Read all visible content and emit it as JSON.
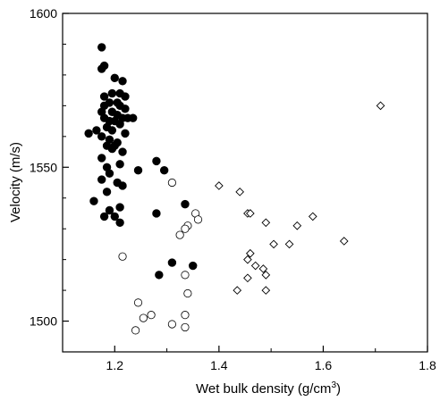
{
  "chart_data": {
    "type": "scatter",
    "xlabel": "Wet bulk density (g/cm",
    "xlabel_sup": "3",
    "xlabel_end": ")",
    "ylabel": "Velocity (m/s)",
    "xlim": [
      1.1,
      1.8
    ],
    "ylim": [
      1490,
      1600
    ],
    "x_ticks": [
      1.2,
      1.4,
      1.6,
      1.8
    ],
    "x_tick_labels": [
      "1.2",
      "1.4",
      "1.6",
      "1.8"
    ],
    "y_ticks": [
      1500,
      1550,
      1600
    ],
    "y_tick_labels": [
      "1500",
      "1550",
      "1600"
    ],
    "legend": "none",
    "grid": false,
    "series": [
      {
        "marker": "filled-circle",
        "color": "#000000",
        "points": [
          [
            1.175,
            1589
          ],
          [
            1.18,
            1583
          ],
          [
            1.175,
            1582
          ],
          [
            1.2,
            1579
          ],
          [
            1.215,
            1578
          ],
          [
            1.195,
            1574
          ],
          [
            1.21,
            1574
          ],
          [
            1.18,
            1573
          ],
          [
            1.22,
            1573
          ],
          [
            1.19,
            1571
          ],
          [
            1.205,
            1571
          ],
          [
            1.18,
            1570
          ],
          [
            1.21,
            1570
          ],
          [
            1.22,
            1569
          ],
          [
            1.175,
            1568
          ],
          [
            1.195,
            1568
          ],
          [
            1.205,
            1567
          ],
          [
            1.18,
            1566
          ],
          [
            1.215,
            1566
          ],
          [
            1.225,
            1566
          ],
          [
            1.235,
            1566
          ],
          [
            1.19,
            1565
          ],
          [
            1.2,
            1565
          ],
          [
            1.21,
            1564
          ],
          [
            1.185,
            1563
          ],
          [
            1.165,
            1562
          ],
          [
            1.15,
            1561
          ],
          [
            1.195,
            1562
          ],
          [
            1.22,
            1561
          ],
          [
            1.175,
            1560
          ],
          [
            1.19,
            1559
          ],
          [
            1.205,
            1558
          ],
          [
            1.185,
            1557
          ],
          [
            1.2,
            1557
          ],
          [
            1.195,
            1556
          ],
          [
            1.215,
            1555
          ],
          [
            1.175,
            1553
          ],
          [
            1.21,
            1551
          ],
          [
            1.185,
            1550
          ],
          [
            1.19,
            1548
          ],
          [
            1.175,
            1546
          ],
          [
            1.205,
            1545
          ],
          [
            1.215,
            1544
          ],
          [
            1.185,
            1542
          ],
          [
            1.16,
            1539
          ],
          [
            1.21,
            1537
          ],
          [
            1.19,
            1536
          ],
          [
            1.18,
            1534
          ],
          [
            1.2,
            1534
          ],
          [
            1.21,
            1532
          ],
          [
            1.245,
            1549
          ],
          [
            1.28,
            1552
          ],
          [
            1.295,
            1549
          ],
          [
            1.28,
            1535
          ],
          [
            1.335,
            1538
          ],
          [
            1.31,
            1519
          ],
          [
            1.285,
            1515
          ],
          [
            1.35,
            1518
          ]
        ]
      },
      {
        "marker": "open-circle",
        "color": "#000000",
        "points": [
          [
            1.31,
            1545
          ],
          [
            1.355,
            1535
          ],
          [
            1.36,
            1533
          ],
          [
            1.34,
            1531
          ],
          [
            1.335,
            1530
          ],
          [
            1.325,
            1528
          ],
          [
            1.215,
            1521
          ],
          [
            1.335,
            1515
          ],
          [
            1.34,
            1509
          ],
          [
            1.245,
            1506
          ],
          [
            1.255,
            1501
          ],
          [
            1.27,
            1502
          ],
          [
            1.335,
            1502
          ],
          [
            1.31,
            1499
          ],
          [
            1.335,
            1498
          ],
          [
            1.24,
            1497
          ]
        ]
      },
      {
        "marker": "open-diamond",
        "color": "#000000",
        "points": [
          [
            1.71,
            1570
          ],
          [
            1.4,
            1544
          ],
          [
            1.44,
            1542
          ],
          [
            1.455,
            1535
          ],
          [
            1.46,
            1535
          ],
          [
            1.49,
            1532
          ],
          [
            1.58,
            1534
          ],
          [
            1.55,
            1531
          ],
          [
            1.64,
            1526
          ],
          [
            1.535,
            1525
          ],
          [
            1.505,
            1525
          ],
          [
            1.46,
            1522
          ],
          [
            1.455,
            1520
          ],
          [
            1.47,
            1518
          ],
          [
            1.485,
            1517
          ],
          [
            1.49,
            1515
          ],
          [
            1.455,
            1514
          ],
          [
            1.435,
            1510
          ],
          [
            1.49,
            1510
          ]
        ]
      }
    ]
  }
}
